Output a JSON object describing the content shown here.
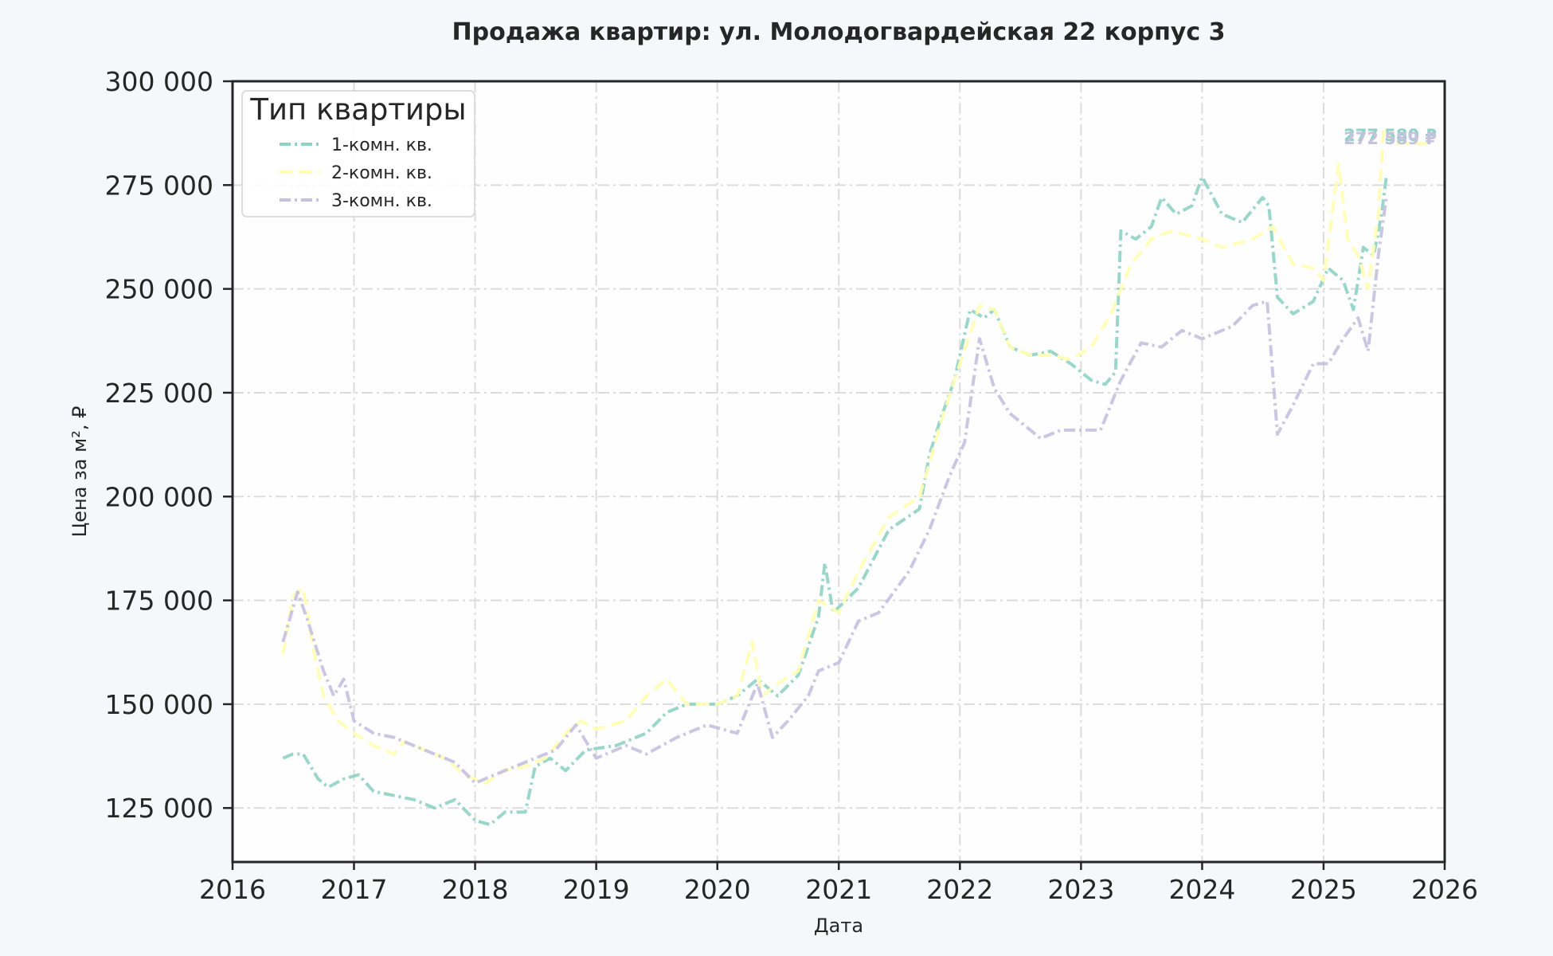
{
  "chart_data": {
    "type": "line",
    "title": "Продажа квартир: ул. Молодогвардейская 22 корпус 3",
    "xlabel": "Дата",
    "ylabel": "Цена за м², ₽",
    "xlim": [
      "2016-01-01",
      "2026-01-01"
    ],
    "ylim": [
      112000,
      300000
    ],
    "x_ticks": [
      "2016",
      "2017",
      "2018",
      "2019",
      "2020",
      "2021",
      "2022",
      "2023",
      "2024",
      "2025",
      "2026"
    ],
    "y_ticks": [
      125000,
      150000,
      175000,
      200000,
      225000,
      250000,
      275000,
      300000
    ],
    "y_tick_labels": [
      "125 000",
      "150 000",
      "175 000",
      "200 000",
      "225 000",
      "250 000",
      "275 000",
      "300 000"
    ],
    "grid": true,
    "legend": {
      "title": "Тип квартиры",
      "position": "top-left"
    },
    "end_labels": [
      "277 580 ₽",
      "272 589 ₽"
    ],
    "series": [
      {
        "name": "1-комн. кв.",
        "color": "#8fd3c4",
        "x": [
          "2016-06-01",
          "2016-07-01",
          "2016-08-01",
          "2016-09-15",
          "2016-10-15",
          "2016-12-01",
          "2017-01-15",
          "2017-03-01",
          "2017-05-01",
          "2017-07-01",
          "2017-09-01",
          "2017-11-01",
          "2018-01-01",
          "2018-02-15",
          "2018-04-01",
          "2018-06-01",
          "2018-07-01",
          "2018-08-15",
          "2018-10-01",
          "2018-12-01",
          "2019-03-01",
          "2019-06-01",
          "2019-08-01",
          "2019-10-01",
          "2020-01-01",
          "2020-03-01",
          "2020-05-01",
          "2020-07-01",
          "2020-09-01",
          "2020-11-01",
          "2020-11-20",
          "2020-12-15",
          "2021-03-01",
          "2021-06-01",
          "2021-09-01",
          "2021-10-01",
          "2021-11-01",
          "2021-12-15",
          "2022-02-01",
          "2022-03-15",
          "2022-04-15",
          "2022-06-01",
          "2022-08-01",
          "2022-10-01",
          "2022-12-01",
          "2023-02-01",
          "2023-03-15",
          "2023-04-15",
          "2023-05-01",
          "2023-06-15",
          "2023-08-01",
          "2023-09-01",
          "2023-10-15",
          "2023-12-01",
          "2024-01-01",
          "2024-03-01",
          "2024-05-01",
          "2024-07-01",
          "2024-07-20",
          "2024-08-15",
          "2024-10-01",
          "2024-12-01",
          "2025-01-15",
          "2025-03-01",
          "2025-04-01",
          "2025-05-01",
          "2025-06-01",
          "2025-06-25",
          "2025-07-10"
        ],
        "y": [
          137000,
          138000,
          138000,
          132000,
          130000,
          132000,
          133000,
          129000,
          128000,
          127000,
          125000,
          127000,
          122000,
          121000,
          124000,
          124000,
          135000,
          137000,
          134000,
          139000,
          140000,
          143000,
          148000,
          150000,
          150000,
          152000,
          156000,
          152000,
          157000,
          171000,
          184000,
          172000,
          178000,
          192000,
          197000,
          210000,
          218000,
          228000,
          245000,
          243000,
          245000,
          236000,
          234000,
          235000,
          232000,
          228000,
          227000,
          230000,
          264000,
          262000,
          265000,
          272000,
          268000,
          270000,
          277000,
          268000,
          266000,
          272000,
          270000,
          248000,
          244000,
          247000,
          255000,
          252000,
          245000,
          260000,
          258000,
          268000,
          277580
        ]
      },
      {
        "name": "2-комн. кв.",
        "color": "#ffffb3",
        "x": [
          "2016-06-01",
          "2016-07-01",
          "2016-08-01",
          "2016-09-01",
          "2016-10-01",
          "2016-11-15",
          "2017-01-01",
          "2017-03-01",
          "2017-05-01",
          "2017-06-01",
          "2017-08-01",
          "2017-10-01",
          "2017-12-01",
          "2018-02-01",
          "2018-04-01",
          "2018-06-01",
          "2018-08-01",
          "2018-10-01",
          "2018-11-15",
          "2019-01-01",
          "2019-04-01",
          "2019-06-01",
          "2019-08-01",
          "2019-10-01",
          "2020-01-01",
          "2020-03-01",
          "2020-04-15",
          "2020-05-15",
          "2020-07-01",
          "2020-09-01",
          "2020-11-01",
          "2021-01-01",
          "2021-03-01",
          "2021-06-01",
          "2021-09-01",
          "2021-10-01",
          "2021-11-01",
          "2022-01-01",
          "2022-03-01",
          "2022-04-15",
          "2022-06-01",
          "2022-08-01",
          "2022-10-01",
          "2022-12-01",
          "2023-02-01",
          "2023-04-01",
          "2023-06-01",
          "2023-08-01",
          "2023-10-01",
          "2024-01-01",
          "2024-03-01",
          "2024-06-01",
          "2024-08-01",
          "2024-10-01",
          "2024-12-01",
          "2025-01-01",
          "2025-02-15",
          "2025-03-15",
          "2025-04-15",
          "2025-05-15",
          "2025-06-15",
          "2025-07-01",
          "2025-08-01",
          "2025-10-01",
          "2025-12-01"
        ],
        "y": [
          162000,
          176000,
          178000,
          163000,
          152000,
          146000,
          143000,
          140000,
          138000,
          141000,
          139000,
          137000,
          133000,
          131000,
          134000,
          135000,
          137000,
          143000,
          146000,
          144000,
          146000,
          152000,
          156000,
          150000,
          150000,
          152000,
          165000,
          152000,
          155000,
          158000,
          175000,
          172000,
          182000,
          195000,
          200000,
          208000,
          217000,
          232000,
          246000,
          245000,
          236000,
          234000,
          234000,
          233000,
          236000,
          244000,
          256000,
          262000,
          264000,
          262000,
          260000,
          262000,
          265000,
          256000,
          255000,
          252000,
          280000,
          262000,
          258000,
          250000,
          268000,
          289000,
          285000,
          285000,
          285000
        ]
      },
      {
        "name": "3-комн. кв.",
        "color": "#c5c1df",
        "x": [
          "2016-06-01",
          "2016-07-15",
          "2016-08-15",
          "2016-10-01",
          "2016-11-01",
          "2016-12-01",
          "2017-01-01",
          "2017-03-01",
          "2017-05-01",
          "2017-07-01",
          "2017-09-01",
          "2017-11-01",
          "2018-01-01",
          "2018-03-01",
          "2018-06-01",
          "2018-09-01",
          "2018-11-01",
          "2019-01-01",
          "2019-04-01",
          "2019-06-01",
          "2019-09-01",
          "2019-12-01",
          "2020-03-01",
          "2020-05-01",
          "2020-06-15",
          "2020-08-01",
          "2020-10-01",
          "2020-11-01",
          "2021-01-01",
          "2021-03-01",
          "2021-05-01",
          "2021-08-01",
          "2021-10-01",
          "2021-12-01",
          "2022-01-15",
          "2022-03-01",
          "2022-04-15",
          "2022-06-01",
          "2022-09-01",
          "2022-11-01",
          "2023-01-01",
          "2023-03-01",
          "2023-05-01",
          "2023-07-01",
          "2023-09-01",
          "2023-11-01",
          "2024-01-01",
          "2024-04-01",
          "2024-06-01",
          "2024-07-15",
          "2024-08-15",
          "2024-10-01",
          "2024-12-01",
          "2025-01-15",
          "2025-03-01",
          "2025-04-15",
          "2025-05-15",
          "2025-06-15",
          "2025-07-10"
        ],
        "y": [
          165000,
          177000,
          170000,
          158000,
          152000,
          156000,
          146000,
          143000,
          142000,
          140000,
          138000,
          136000,
          131000,
          133000,
          136000,
          139000,
          145000,
          137000,
          140000,
          138000,
          142000,
          145000,
          143000,
          155000,
          142000,
          146000,
          152000,
          158000,
          160000,
          170000,
          172000,
          182000,
          192000,
          205000,
          213000,
          238000,
          226000,
          220000,
          214000,
          216000,
          216000,
          216000,
          228000,
          237000,
          236000,
          240000,
          238000,
          241000,
          246000,
          247000,
          215000,
          222000,
          232000,
          232000,
          238000,
          243000,
          235000,
          258000,
          272589
        ]
      }
    ]
  }
}
